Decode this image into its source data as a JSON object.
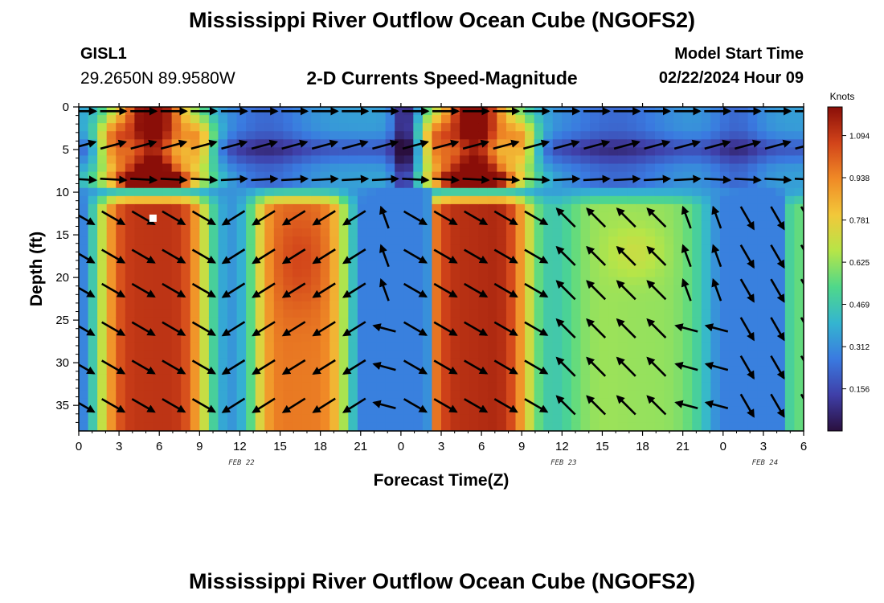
{
  "page": {
    "title_top": "Mississippi River Outflow Ocean Cube (NGOFS2)",
    "title_bottom": "Mississippi River Outflow Ocean Cube (NGOFS2)",
    "station": "GISL1",
    "coordinates": "29.2650N  89.9580W",
    "subtitle": "2-D Currents Speed-Magnitude",
    "model_start_label": "Model Start Time",
    "model_start_value": "02/22/2024 Hour 09"
  },
  "chart_data": {
    "type": "heatmap",
    "title": "2-D Currents Speed-Magnitude",
    "xlabel": "Forecast Time(Z)",
    "ylabel": "Depth (ft)",
    "x_unit": "hours since 2024-02-22 00Z",
    "xlim": [
      0,
      54
    ],
    "ylim": [
      38,
      0
    ],
    "y_inverted": true,
    "x_ticks": [
      {
        "v": 0,
        "label": "0"
      },
      {
        "v": 3,
        "label": "3"
      },
      {
        "v": 6,
        "label": "6"
      },
      {
        "v": 9,
        "label": "9"
      },
      {
        "v": 12,
        "label": "12"
      },
      {
        "v": 15,
        "label": "15"
      },
      {
        "v": 18,
        "label": "18"
      },
      {
        "v": 21,
        "label": "21"
      },
      {
        "v": 24,
        "label": "0"
      },
      {
        "v": 27,
        "label": "3"
      },
      {
        "v": 30,
        "label": "6"
      },
      {
        "v": 33,
        "label": "9"
      },
      {
        "v": 36,
        "label": "12"
      },
      {
        "v": 39,
        "label": "15"
      },
      {
        "v": 42,
        "label": "18"
      },
      {
        "v": 45,
        "label": "21"
      },
      {
        "v": 48,
        "label": "0"
      },
      {
        "v": 51,
        "label": "3"
      },
      {
        "v": 54,
        "label": "6"
      }
    ],
    "y_ticks": [
      0,
      5,
      10,
      15,
      20,
      25,
      30,
      35
    ],
    "date_labels": [
      {
        "v": 12,
        "label": "FEB 22"
      },
      {
        "v": 36,
        "label": "FEB 23"
      },
      {
        "v": 51,
        "label": "FEB 24"
      }
    ],
    "colorbar": {
      "label": "Knots",
      "min": 0.0,
      "max": 1.2,
      "ticks": [
        0.156,
        0.312,
        0.469,
        0.625,
        0.781,
        0.938,
        1.094
      ],
      "colors": [
        "#2a0f3e",
        "#3f3fa8",
        "#3a7ae0",
        "#34b5d0",
        "#4fd88a",
        "#b6e548",
        "#f2c83a",
        "#f08a26",
        "#d2441a",
        "#8a0e08"
      ]
    },
    "marker": {
      "x": 5.5,
      "y": 13
    },
    "grid": false
  }
}
